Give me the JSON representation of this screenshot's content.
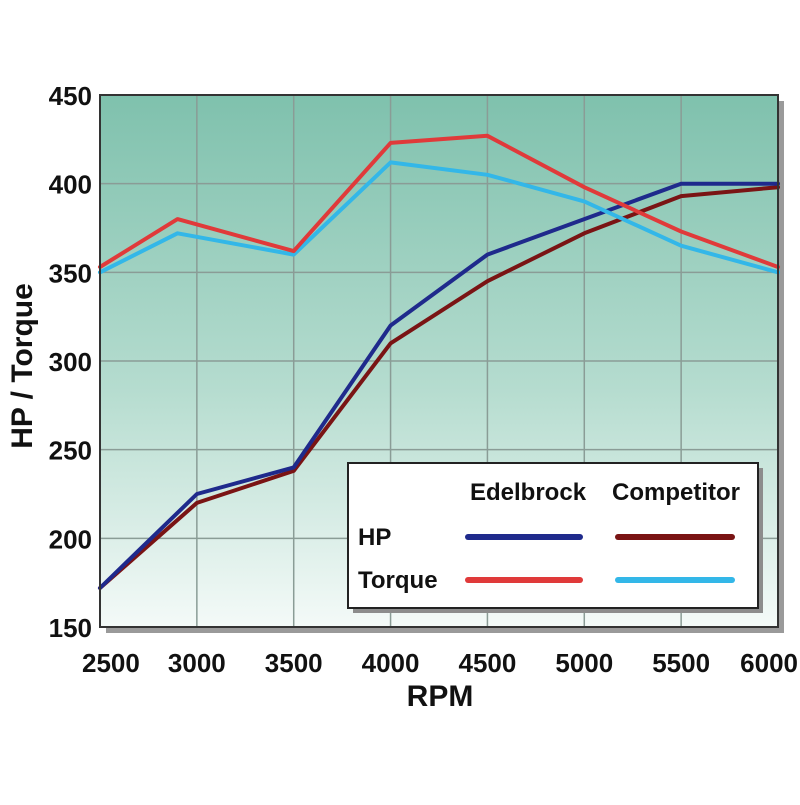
{
  "chart_data": {
    "type": "line",
    "xlabel": "RPM",
    "ylabel": "HP / Torque",
    "xlim": [
      2500,
      6000
    ],
    "ylim": [
      150,
      450
    ],
    "x_ticks": [
      2500,
      3000,
      3500,
      4000,
      4500,
      5000,
      5500,
      6000
    ],
    "x_tick_labels": [
      "2500",
      "3000",
      "3500",
      "4000",
      "4500",
      "5000",
      "5500",
      "6000"
    ],
    "y_ticks": [
      150,
      200,
      250,
      300,
      350,
      400,
      450
    ],
    "y_tick_labels": [
      "150",
      "200",
      "250",
      "300",
      "350",
      "400",
      "450"
    ],
    "grid": true,
    "legend_position": "bottom-right",
    "legend": {
      "column_headers": [
        "Edelbrock",
        "Competitor"
      ],
      "row_labels": [
        "HP",
        "Torque"
      ]
    },
    "series": [
      {
        "group": "Edelbrock",
        "measure": "HP",
        "color": "#1f2a8c",
        "x": [
          2500,
          3000,
          3500,
          4000,
          4500,
          5000,
          5500,
          6000
        ],
        "y": [
          172,
          225,
          240,
          320,
          360,
          380,
          400,
          400
        ]
      },
      {
        "group": "Competitor",
        "measure": "HP",
        "color": "#7a1414",
        "x": [
          2500,
          3000,
          3500,
          4000,
          4500,
          5000,
          5500,
          6000
        ],
        "y": [
          172,
          220,
          238,
          310,
          345,
          372,
          393,
          398
        ]
      },
      {
        "group": "Edelbrock",
        "measure": "Torque",
        "color": "#e03a3a",
        "x": [
          2500,
          2900,
          3500,
          4000,
          4500,
          5000,
          5500,
          6000
        ],
        "y": [
          353,
          380,
          362,
          423,
          427,
          398,
          373,
          353
        ]
      },
      {
        "group": "Competitor",
        "measure": "Torque",
        "color": "#33b7e8",
        "x": [
          2500,
          2900,
          3500,
          4000,
          4500,
          5000,
          5500,
          6000
        ],
        "y": [
          350,
          372,
          360,
          412,
          405,
          390,
          365,
          350
        ]
      }
    ]
  }
}
